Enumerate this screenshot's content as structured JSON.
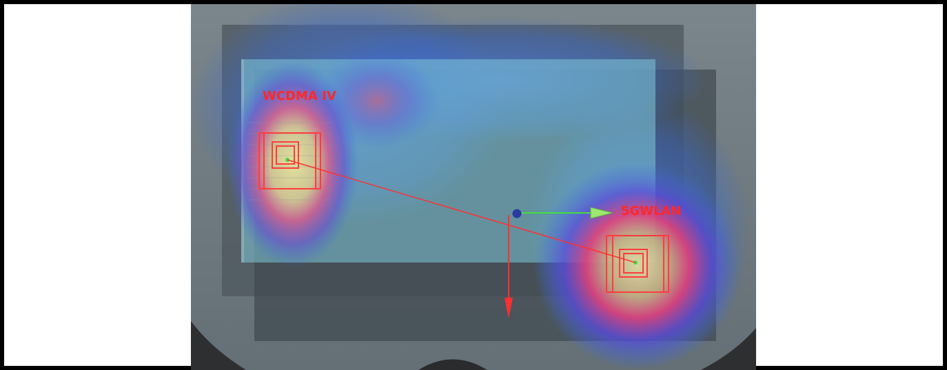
{
  "antennas": [
    {
      "label": "WCDMA IV"
    },
    {
      "label": "5GWLAN"
    }
  ],
  "colors": {
    "background": "#ffffff",
    "frame": "#000000",
    "floor": "#747f86",
    "board": "#7ec8d8",
    "heat_low": "#3a6fe0",
    "heat_mid": "#c05090",
    "heat_high": "#e8e090",
    "marker": "#ff3c3c",
    "axis_x": "#40e040",
    "axis_y": "#ff3030",
    "origin": "#2a3aa0"
  },
  "icons": {
    "axis_x": "arrow-right-icon",
    "axis_y": "arrow-down-icon",
    "origin": "origin-sphere-icon"
  }
}
